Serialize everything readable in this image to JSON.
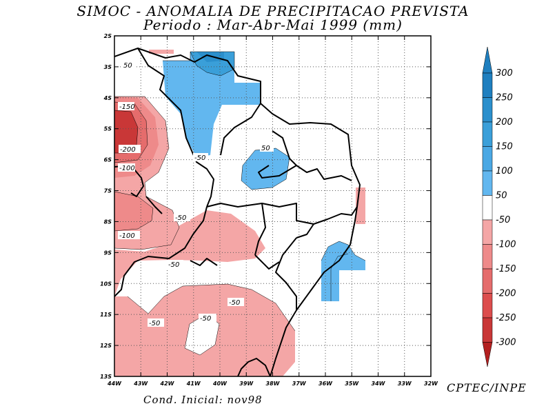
{
  "chart_data": {
    "type": "heatmap",
    "title": "SIMOC -  ANOMALIA DE PRECIPITACAO PREVISTA",
    "subtitle": "Periodo : Mar-Abr-Mai 1999 (mm)",
    "units": "mm",
    "x_ticks": [
      "44W",
      "43W",
      "42W",
      "41W",
      "40W",
      "39W",
      "38W",
      "37W",
      "36W",
      "35W",
      "34W",
      "33W",
      "32W"
    ],
    "y_ticks": [
      "2S",
      "3S",
      "4S",
      "5S",
      "6S",
      "7S",
      "8S",
      "9S",
      "10S",
      "11S",
      "12S",
      "13S"
    ],
    "xlim": [
      -44,
      -32
    ],
    "ylim": [
      -13,
      -2
    ],
    "grid": true,
    "colorbar_levels": [
      "300",
      "250",
      "200",
      "150",
      "100",
      "50",
      "-50",
      "-100",
      "-150",
      "-200",
      "-250",
      "-300"
    ],
    "contour_labels": [
      "50",
      "-150",
      "-200",
      "-100",
      "-50",
      "50",
      "-100",
      "-50",
      "-50",
      "-50",
      "-50",
      "-50"
    ],
    "colors": {
      "pos_300": "#1f7fbf",
      "pos_250": "#2b8fcc",
      "pos_200": "#3a9fd9",
      "pos_150": "#4aa8e4",
      "pos_50": "#5cb8f0",
      "pos_100": "#62b7ef",
      "neutral": "#ffffff",
      "neg_50": "#f4a6a6",
      "neg_100": "#ee8a8a",
      "neg_150": "#e56c6c",
      "neg_200": "#dc4d4d",
      "neg_250": "#c93737",
      "neg_300": "#b32020"
    },
    "credit": "CPTEC/INPE",
    "initial_condition": "Cond. Inicial: nov98"
  }
}
